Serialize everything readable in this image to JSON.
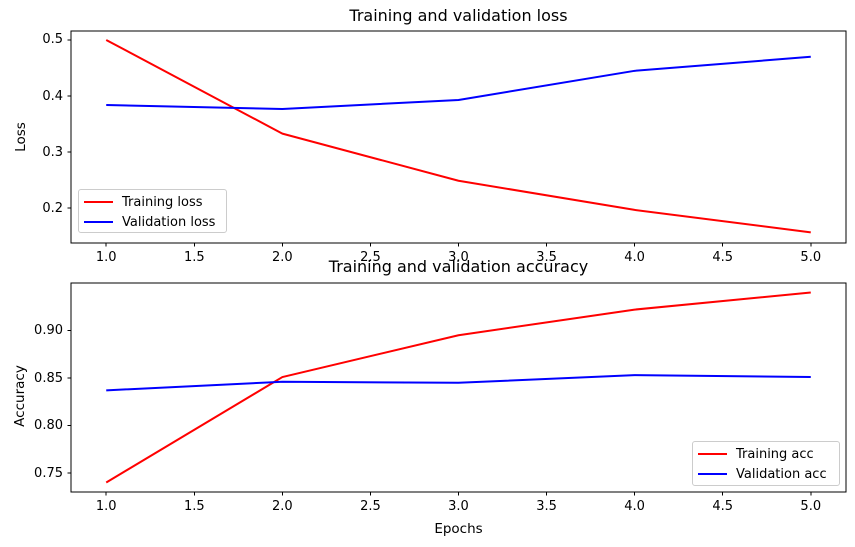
{
  "figure": {
    "background": "#ffffff",
    "text_color": "#000000",
    "spine_color": "#000000"
  },
  "chart_data": [
    {
      "type": "line",
      "title": "Training and validation loss",
      "xlabel": "",
      "ylabel": "Loss",
      "x": [
        1,
        2,
        3,
        4,
        5
      ],
      "series": [
        {
          "name": "Training loss",
          "color": "#ff0000",
          "values": [
            0.5,
            0.333,
            0.249,
            0.197,
            0.157
          ]
        },
        {
          "name": "Validation loss",
          "color": "#0000ff",
          "values": [
            0.384,
            0.377,
            0.393,
            0.445,
            0.47
          ]
        }
      ],
      "xlim": [
        0.8,
        5.2
      ],
      "ylim": [
        0.138,
        0.516
      ],
      "xticks": [
        1.0,
        1.5,
        2.0,
        2.5,
        3.0,
        3.5,
        4.0,
        4.5,
        5.0
      ],
      "xtick_labels": [
        "1.0",
        "1.5",
        "2.0",
        "2.5",
        "3.0",
        "3.5",
        "4.0",
        "4.5",
        "5.0"
      ],
      "yticks": [
        0.2,
        0.3,
        0.4,
        0.5
      ],
      "ytick_labels": [
        "0.2",
        "0.3",
        "0.4",
        "0.5"
      ],
      "grid": false,
      "legend_position": "lower left"
    },
    {
      "type": "line",
      "title": "Training and validation accuracy",
      "xlabel": "Epochs",
      "ylabel": "Accuracy",
      "x": [
        1,
        2,
        3,
        4,
        5
      ],
      "series": [
        {
          "name": "Training acc",
          "color": "#ff0000",
          "values": [
            0.74,
            0.851,
            0.895,
            0.922,
            0.94
          ]
        },
        {
          "name": "Validation acc",
          "color": "#0000ff",
          "values": [
            0.837,
            0.846,
            0.845,
            0.853,
            0.851
          ]
        }
      ],
      "xlim": [
        0.8,
        5.2
      ],
      "ylim": [
        0.73,
        0.95
      ],
      "xticks": [
        1.0,
        1.5,
        2.0,
        2.5,
        3.0,
        3.5,
        4.0,
        4.5,
        5.0
      ],
      "xtick_labels": [
        "1.0",
        "1.5",
        "2.0",
        "2.5",
        "3.0",
        "3.5",
        "4.0",
        "4.5",
        "5.0"
      ],
      "yticks": [
        0.75,
        0.8,
        0.85,
        0.9
      ],
      "ytick_labels": [
        "0.75",
        "0.80",
        "0.85",
        "0.90"
      ],
      "grid": false,
      "legend_position": "lower right"
    }
  ]
}
